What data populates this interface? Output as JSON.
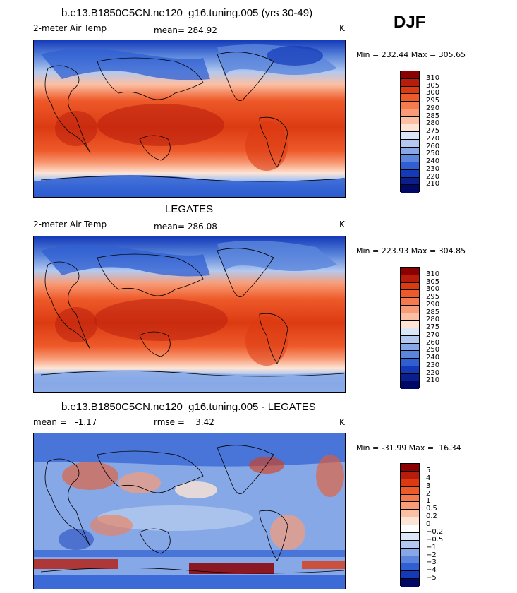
{
  "season": "DJF",
  "panels": [
    {
      "title": "b.e13.B1850C5CN.ne120_g16.tuning.005 (yrs 30-49)",
      "left_label": "2-meter Air Temp",
      "mid_label": "mean= 284.92",
      "units": "K",
      "minmax": "Min = 232.44 Max = 305.65",
      "colorbar_labels": [
        "310",
        "305",
        "300",
        "295",
        "290",
        "285",
        "280",
        "275",
        "270",
        "260",
        "250",
        "240",
        "230",
        "220",
        "210"
      ]
    },
    {
      "title": "LEGATES",
      "left_label": "2-meter Air Temp",
      "mid_label": "mean= 286.08",
      "units": "K",
      "minmax": "Min = 223.93 Max = 304.85",
      "colorbar_labels": [
        "310",
        "305",
        "300",
        "295",
        "290",
        "285",
        "280",
        "275",
        "270",
        "260",
        "250",
        "240",
        "230",
        "220",
        "210"
      ]
    },
    {
      "title": "b.e13.B1850C5CN.ne120_g16.tuning.005 - LEGATES",
      "left_label": "mean =   -1.17",
      "mid_label": "rmse =    3.42",
      "units": "K",
      "minmax": "Min = -31.99 Max =  16.34",
      "colorbar_labels": [
        "5",
        "4",
        "3",
        "2",
        "1",
        "0.5",
        "0.2",
        "0",
        "-0.2",
        "-0.5",
        "-1",
        "-2",
        "-3",
        "-4",
        "-5"
      ]
    }
  ],
  "colors": {
    "abs_scale": [
      "#8b0000",
      "#b81c0c",
      "#dc3b12",
      "#ee5a2a",
      "#f57b4f",
      "#f89c77",
      "#fbbfa3",
      "#fde4d5",
      "#dbe6f7",
      "#b3c9ef",
      "#87a8e6",
      "#5b86dc",
      "#2f5fd2",
      "#143ab8",
      "#0a1f8c",
      "#000a66"
    ],
    "diff_scale": [
      "#8b0000",
      "#b81c0c",
      "#dc3b12",
      "#ee5a2a",
      "#f57b4f",
      "#f89c77",
      "#fbbfa3",
      "#fde4d5",
      "#ffffff",
      "#dbe6f7",
      "#b3c9ef",
      "#87a8e6",
      "#5b86dc",
      "#2f5fd2",
      "#143ab8",
      "#000a66"
    ]
  }
}
